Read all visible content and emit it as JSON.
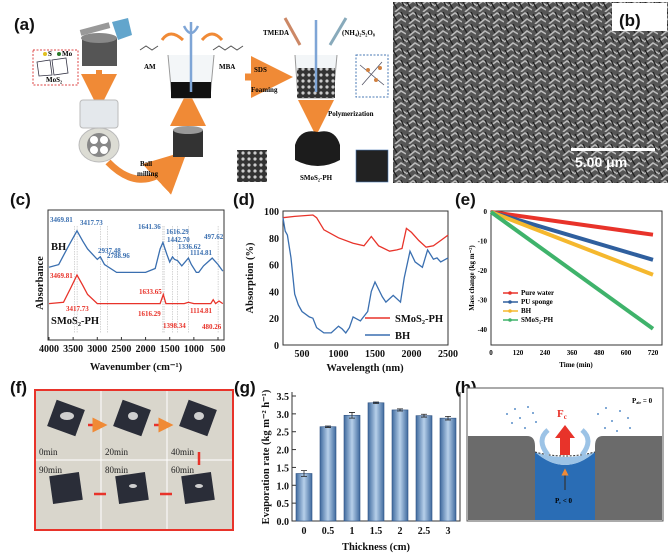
{
  "panels": {
    "a": {
      "label": "(a)",
      "mos2_legend_s": "S",
      "mos2_legend_mo": "Mo",
      "mos2": "MoS₂",
      "am": "AM",
      "mba": "MBA",
      "sds": "SDS",
      "foaming": "Foaming",
      "tmeda": "TMEDA",
      "aps": "(NH₄)₂S₂O₈",
      "polymerization": "Polymerization",
      "ball": "Ball",
      "milling": "milling",
      "product": "SMoS₂-PH"
    },
    "b": {
      "label": "(b)",
      "scale_bar": "5.00 μm"
    },
    "c": {
      "label": "(c)"
    },
    "d": {
      "label": "(d)"
    },
    "e": {
      "label": "(e)"
    },
    "f": {
      "label": "(f)",
      "times": [
        "0min",
        "20min",
        "40min",
        "90min",
        "80min",
        "60min"
      ]
    },
    "g": {
      "label": "(g)"
    },
    "h": {
      "label": "(h)",
      "fc_main": "F",
      "fc_sub": "c",
      "pair_main": "P",
      "pair_sub": "air",
      "pair_rest": " = 0",
      "pc_main": "P",
      "pc_sub": "c",
      "pc_rest": " < 0",
      "colors": {
        "water": "#2a6db5",
        "solid": "#6b6b6b",
        "force": "#e8332a",
        "vapor": "#9cc3e6"
      }
    }
  },
  "chart_data": [
    {
      "panel": "c",
      "type": "line",
      "xlabel": "Wavenumber (cm⁻¹)",
      "ylabel": "Absorbance",
      "xlim": [
        4000,
        380
      ],
      "x_reversed": true,
      "xticks": [
        "4000",
        "3500",
        "3000",
        "2500",
        "2000",
        "1500",
        "1000",
        "500"
      ],
      "xtick_values": [
        4000,
        3500,
        3000,
        2500,
        2000,
        1500,
        1000,
        500
      ],
      "grid": false,
      "series": [
        {
          "name": "BH",
          "color": "#3a6fb0",
          "points": [
            [
              4000,
              56
            ],
            [
              3800,
              58
            ],
            [
              3600,
              72
            ],
            [
              3420,
              84
            ],
            [
              3300,
              76
            ],
            [
              3200,
              70
            ],
            [
              3000,
              62
            ],
            [
              2937,
              64
            ],
            [
              2850,
              58
            ],
            [
              2600,
              52
            ],
            [
              2000,
              52
            ],
            [
              1800,
              55
            ],
            [
              1700,
              70
            ],
            [
              1641,
              75
            ],
            [
              1560,
              66
            ],
            [
              1500,
              60
            ],
            [
              1442,
              64
            ],
            [
              1400,
              62
            ],
            [
              1336,
              61
            ],
            [
              1250,
              57
            ],
            [
              1114,
              63
            ],
            [
              1050,
              58
            ],
            [
              950,
              52
            ],
            [
              900,
              52
            ],
            [
              800,
              57
            ],
            [
              620,
              63
            ],
            [
              497,
              58
            ],
            [
              400,
              53
            ]
          ]
        },
        {
          "name": "SMoS₂-PH",
          "color": "#e8332a",
          "points": [
            [
              4000,
              28
            ],
            [
              3700,
              29
            ],
            [
              3550,
              40
            ],
            [
              3420,
              50
            ],
            [
              3300,
              42
            ],
            [
              3200,
              35
            ],
            [
              3000,
              28
            ],
            [
              2000,
              28
            ],
            [
              1700,
              28
            ],
            [
              1633,
              35
            ],
            [
              1580,
              28
            ],
            [
              1200,
              28
            ],
            [
              1114,
              29
            ],
            [
              1000,
              28
            ],
            [
              650,
              28
            ],
            [
              600,
              31
            ],
            [
              550,
              28
            ],
            [
              480,
              30
            ],
            [
              400,
              28
            ]
          ]
        }
      ],
      "annotations_bh": [
        "3469.81",
        "3417.73",
        "2937.48",
        "2788.96",
        "1641.36",
        "1616.29",
        "1442.70",
        "1336.62",
        "1114.81",
        "497.62"
      ],
      "annotations_smos2": [
        "3469.81",
        "3417.73",
        "1633.65",
        "1616.29",
        "1398.34",
        "1114.81",
        "480.26"
      ],
      "guide_lines": [
        3469.81,
        3417.73,
        2937.48,
        2788.96,
        1641.36,
        1616.29,
        1442.7,
        1336.62,
        1114.81,
        497.62
      ]
    },
    {
      "panel": "d",
      "type": "line",
      "xlabel": "Wavelength (nm)",
      "ylabel": "Absorption (%)",
      "xlim": [
        240,
        2500
      ],
      "ylim": [
        0,
        100
      ],
      "xticks": [
        "500",
        "1000",
        "1500",
        "2000",
        "2500"
      ],
      "xtick_values": [
        500,
        1000,
        1500,
        2000,
        2500
      ],
      "yticks": [
        "0",
        "20",
        "40",
        "60",
        "80",
        "100"
      ],
      "ytick_values": [
        0,
        20,
        40,
        60,
        80,
        100
      ],
      "legend_position": "bottom-right",
      "grid": false,
      "series": [
        {
          "name": "SMoS₂-PH",
          "color": "#e8332a",
          "points": [
            [
              240,
              95
            ],
            [
              400,
              96
            ],
            [
              650,
              97
            ],
            [
              700,
              95
            ],
            [
              800,
              86
            ],
            [
              1000,
              80
            ],
            [
              1200,
              76
            ],
            [
              1350,
              74
            ],
            [
              1450,
              81
            ],
            [
              1550,
              74
            ],
            [
              1700,
              70
            ],
            [
              1800,
              71
            ],
            [
              1870,
              72
            ],
            [
              1930,
              87
            ],
            [
              2000,
              84
            ],
            [
              2100,
              78
            ],
            [
              2200,
              73
            ],
            [
              2300,
              74
            ],
            [
              2400,
              78
            ],
            [
              2500,
              82
            ]
          ]
        },
        {
          "name": "BH",
          "color": "#3a6fb0",
          "points": [
            [
              240,
              95
            ],
            [
              270,
              85
            ],
            [
              300,
              82
            ],
            [
              350,
              65
            ],
            [
              400,
              38
            ],
            [
              450,
              30
            ],
            [
              500,
              25
            ],
            [
              600,
              21
            ],
            [
              650,
              20
            ],
            [
              700,
              13
            ],
            [
              800,
              9
            ],
            [
              900,
              9
            ],
            [
              1000,
              14
            ],
            [
              1050,
              12
            ],
            [
              1100,
              9
            ],
            [
              1150,
              13
            ],
            [
              1200,
              21
            ],
            [
              1300,
              18
            ],
            [
              1400,
              25
            ],
            [
              1450,
              40
            ],
            [
              1500,
              47
            ],
            [
              1600,
              36
            ],
            [
              1650,
              32
            ],
            [
              1750,
              37
            ],
            [
              1850,
              32
            ],
            [
              1900,
              50
            ],
            [
              1980,
              70
            ],
            [
              2050,
              62
            ],
            [
              2150,
              58
            ],
            [
              2220,
              71
            ],
            [
              2300,
              64
            ],
            [
              2350,
              65
            ],
            [
              2400,
              62
            ],
            [
              2500,
              65
            ]
          ]
        }
      ]
    },
    {
      "panel": "e",
      "type": "line",
      "xlabel": "Time (min)",
      "ylabel": "Mass change (kg m⁻²)",
      "xlim": [
        0,
        750
      ],
      "ylim": [
        -45,
        2
      ],
      "xticks": [
        "0",
        "120",
        "240",
        "360",
        "480",
        "600",
        "720"
      ],
      "xtick_values": [
        0,
        120,
        240,
        360,
        480,
        600,
        720
      ],
      "yticks": [
        "0",
        "-10",
        "-20",
        "-30",
        "-40"
      ],
      "ytick_values": [
        0,
        -10,
        -20,
        -30,
        -40
      ],
      "legend_position": "middle-left",
      "grid": false,
      "series": [
        {
          "name": "Pure water",
          "color": "#e8332a",
          "marker": "square",
          "points": [
            [
              0,
              0
            ],
            [
              720,
              -7.7
            ]
          ]
        },
        {
          "name": "PU sponge",
          "color": "#2f5f9e",
          "marker": "circle",
          "points": [
            [
              0,
              0
            ],
            [
              720,
              -16.2
            ]
          ]
        },
        {
          "name": "BH",
          "color": "#f5b82e",
          "marker": "triangle-up",
          "points": [
            [
              0,
              0
            ],
            [
              720,
              -21.3
            ]
          ]
        },
        {
          "name": "SMoS₂-PH",
          "color": "#3fb36b",
          "marker": "triangle-down",
          "points": [
            [
              0,
              0
            ],
            [
              720,
              -39.6
            ]
          ]
        }
      ]
    },
    {
      "panel": "g",
      "type": "bar",
      "xlabel": "Thickness (cm)",
      "ylabel": "Evaporation rate (kg m⁻² h⁻¹)",
      "categories": [
        "0",
        "0.5",
        "1",
        "1.5",
        "2",
        "2.5",
        "3"
      ],
      "values": [
        1.33,
        2.64,
        2.96,
        3.31,
        3.11,
        2.95,
        2.88
      ],
      "errors": [
        0.08,
        0.02,
        0.08,
        0.02,
        0.03,
        0.04,
        0.05
      ],
      "ylim": [
        0,
        3.65
      ],
      "yticks": [
        "0.0",
        "0.5",
        "1.0",
        "1.5",
        "2.0",
        "2.5",
        "3.0",
        "3.5"
      ],
      "ytick_values": [
        0,
        0.5,
        1,
        1.5,
        2,
        2.5,
        3,
        3.5
      ],
      "bar_color": "#7fa6cf",
      "grid": false
    }
  ]
}
